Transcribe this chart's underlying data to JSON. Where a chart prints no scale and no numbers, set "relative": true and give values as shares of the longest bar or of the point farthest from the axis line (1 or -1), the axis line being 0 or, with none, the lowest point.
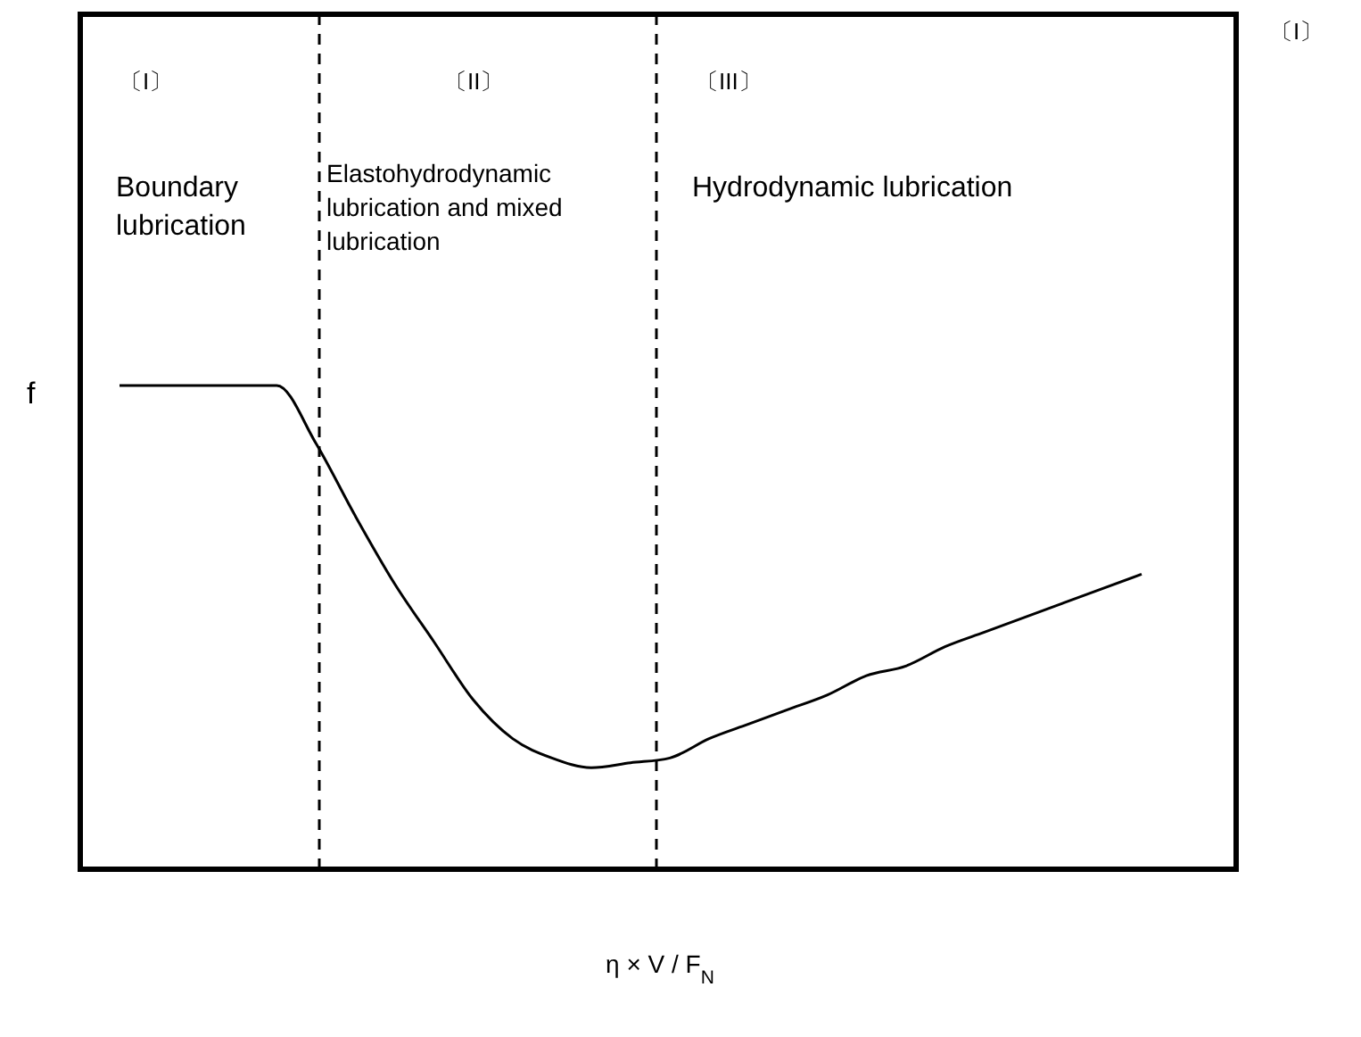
{
  "chart_data": {
    "type": "line",
    "relative": true,
    "xlabel": "η × V / F$_{N}$",
    "ylabel": "f",
    "categories": [
      null,
      null,
      null,
      null,
      null,
      null,
      null,
      null,
      null,
      null,
      null,
      null,
      null,
      null,
      null,
      null,
      null,
      null,
      null,
      null,
      null,
      null,
      null,
      null,
      null,
      null,
      null
    ],
    "series": [
      {
        "color": "#000000",
        "line_style": "solid",
        "values": [
          1,
          1,
          1,
          1,
          1,
          0.88,
          0.73,
          0.59,
          0.47,
          0.35,
          0.27,
          0.23,
          0.21,
          0.22,
          0.23,
          0.27,
          0.3,
          0.33,
          0.36,
          0.4,
          0.42,
          0.46,
          0.49,
          0.52,
          0.55,
          0.58,
          0.61
        ]
      }
    ],
    "annotations": [
      "〔I〕",
      "Boundary lubrication",
      "〔II〕",
      "Elastohydrodynamic lubrication and mixed lubrication",
      "〔III〕",
      "Hydrodynamic lubrication",
      "〔I〕"
    ],
    "marker": "none"
  }
}
